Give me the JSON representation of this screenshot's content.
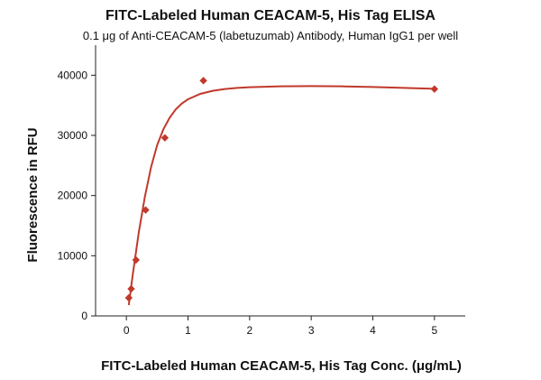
{
  "chart_data": {
    "type": "scatter",
    "title": "FITC-Labeled Human CEACAM-5, His Tag ELISA",
    "subtitle": "0.1 μg of Anti-CEACAM-5 (labetuzumab) Antibody, Human IgG1 per well",
    "xlabel": "FITC-Labeled Human CEACAM-5, His Tag Conc. (μg/mL)",
    "ylabel": "Fluorescence in RFU",
    "xlim": [
      -0.5,
      5.5
    ],
    "ylim": [
      0,
      45000
    ],
    "xticks": [
      0,
      1,
      2,
      3,
      4,
      5
    ],
    "yticks": [
      0,
      10000,
      20000,
      30000,
      40000
    ],
    "grid": false,
    "legend": "none",
    "color": "#c0392b",
    "series": [
      {
        "marker": "diamond",
        "x": [
          0.039,
          0.078,
          0.156,
          0.3125,
          0.625,
          1.25,
          5
        ],
        "y": [
          3000,
          4500,
          9300,
          17600,
          29600,
          39100,
          37700
        ]
      }
    ],
    "fit": {
      "type": "line",
      "x": [
        0.039,
        0.1,
        0.2,
        0.3,
        0.4,
        0.5,
        0.6,
        0.7,
        0.8,
        0.9,
        1.0,
        1.2,
        1.4,
        1.6,
        1.8,
        2.0,
        2.5,
        3.0,
        3.5,
        4.0,
        4.5,
        5.0
      ],
      "y": [
        1800,
        6600,
        13800,
        19800,
        24700,
        28400,
        31000,
        32900,
        34300,
        35300,
        36000,
        36900,
        37400,
        37700,
        37900,
        38000,
        38150,
        38200,
        38150,
        38050,
        37900,
        37750
      ]
    }
  }
}
